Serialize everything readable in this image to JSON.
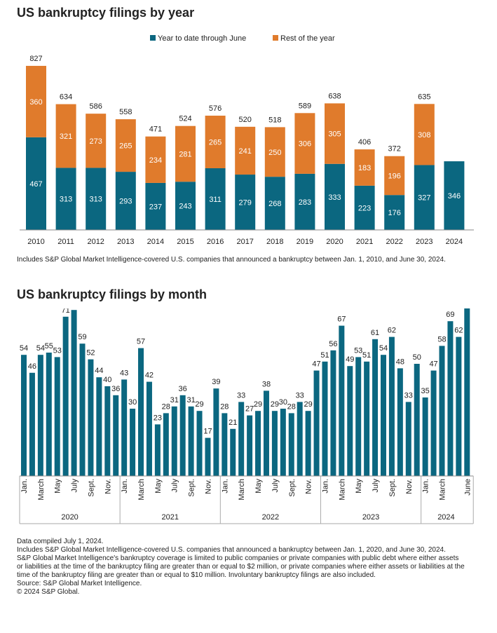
{
  "charts_titles": {
    "by_year": "US bankruptcy filings by year",
    "by_month": "US bankruptcy filings by month"
  },
  "colors": {
    "teal": "#0b6780",
    "orange": "#e07b2c"
  },
  "notes": {
    "by_year": "Includes S&P Global Market Intelligence-covered U.S. companies that announced a bankruptcy between Jan. 1, 2010, and June 30, 2024."
  },
  "footer": {
    "compiled": "Data compiled July 1, 2024.",
    "includes": "Includes S&P Global Market Intelligence-covered U.S. companies that announced a bankruptcy between Jan. 1, 2020, and June 30, 2024.",
    "coverage": "S&P Global Market Intelligence's bankruptcy coverage is limited to public companies or private companies with public debt where either assets or liabilities at the time of the bankruptcy filing are greater than or equal to $2 million, or private companies where either assets or liabilities at the time of the bankruptcy filing are greater than or equal to $10 million. Involuntary bankruptcy filings are also included.",
    "source": "Source: S&P Global Market Intelligence.",
    "copyright": "© 2024 S&P Global."
  },
  "chart_data": [
    {
      "type": "bar",
      "stacked": true,
      "title": "US bankruptcy filings by year",
      "categories": [
        "2010",
        "2011",
        "2012",
        "2013",
        "2014",
        "2015",
        "2016",
        "2017",
        "2018",
        "2019",
        "2020",
        "2021",
        "2022",
        "2023",
        "2024"
      ],
      "series": [
        {
          "name": "Year to date through June",
          "color": "#0b6780",
          "values": [
            467,
            313,
            313,
            293,
            237,
            243,
            311,
            279,
            268,
            283,
            333,
            223,
            176,
            327,
            346
          ]
        },
        {
          "name": "Rest of the year",
          "color": "#e07b2c",
          "values": [
            360,
            321,
            273,
            265,
            234,
            281,
            265,
            241,
            250,
            306,
            305,
            183,
            196,
            308,
            null
          ]
        }
      ],
      "totals": [
        827,
        634,
        586,
        558,
        471,
        524,
        576,
        520,
        518,
        589,
        638,
        406,
        372,
        635,
        null
      ],
      "ylim": [
        0,
        850
      ],
      "legend": "top-center",
      "grid": false
    },
    {
      "type": "bar",
      "title": "US bankruptcy filings by month",
      "values": [
        54,
        46,
        54,
        55,
        53,
        71,
        74,
        59,
        52,
        44,
        40,
        36,
        43,
        30,
        57,
        42,
        23,
        28,
        31,
        36,
        31,
        29,
        17,
        39,
        28,
        21,
        33,
        27,
        29,
        38,
        29,
        30,
        28,
        33,
        29,
        47,
        51,
        56,
        67,
        49,
        53,
        51,
        61,
        54,
        62,
        48,
        33,
        50,
        35,
        47,
        58,
        69,
        62,
        75
      ],
      "month_tick_labels": [
        "Jan.",
        "March",
        "May",
        "July",
        "Sept.",
        "Nov."
      ],
      "years": [
        {
          "label": "2020",
          "months": 12
        },
        {
          "label": "2021",
          "months": 12
        },
        {
          "label": "2022",
          "months": 12
        },
        {
          "label": "2023",
          "months": 12
        },
        {
          "label": "2024",
          "months": 6,
          "tick_labels": [
            "Jan.",
            "March",
            "June"
          ]
        }
      ],
      "ylim": [
        0,
        80
      ],
      "color": "#0b6780",
      "grid": false
    }
  ]
}
